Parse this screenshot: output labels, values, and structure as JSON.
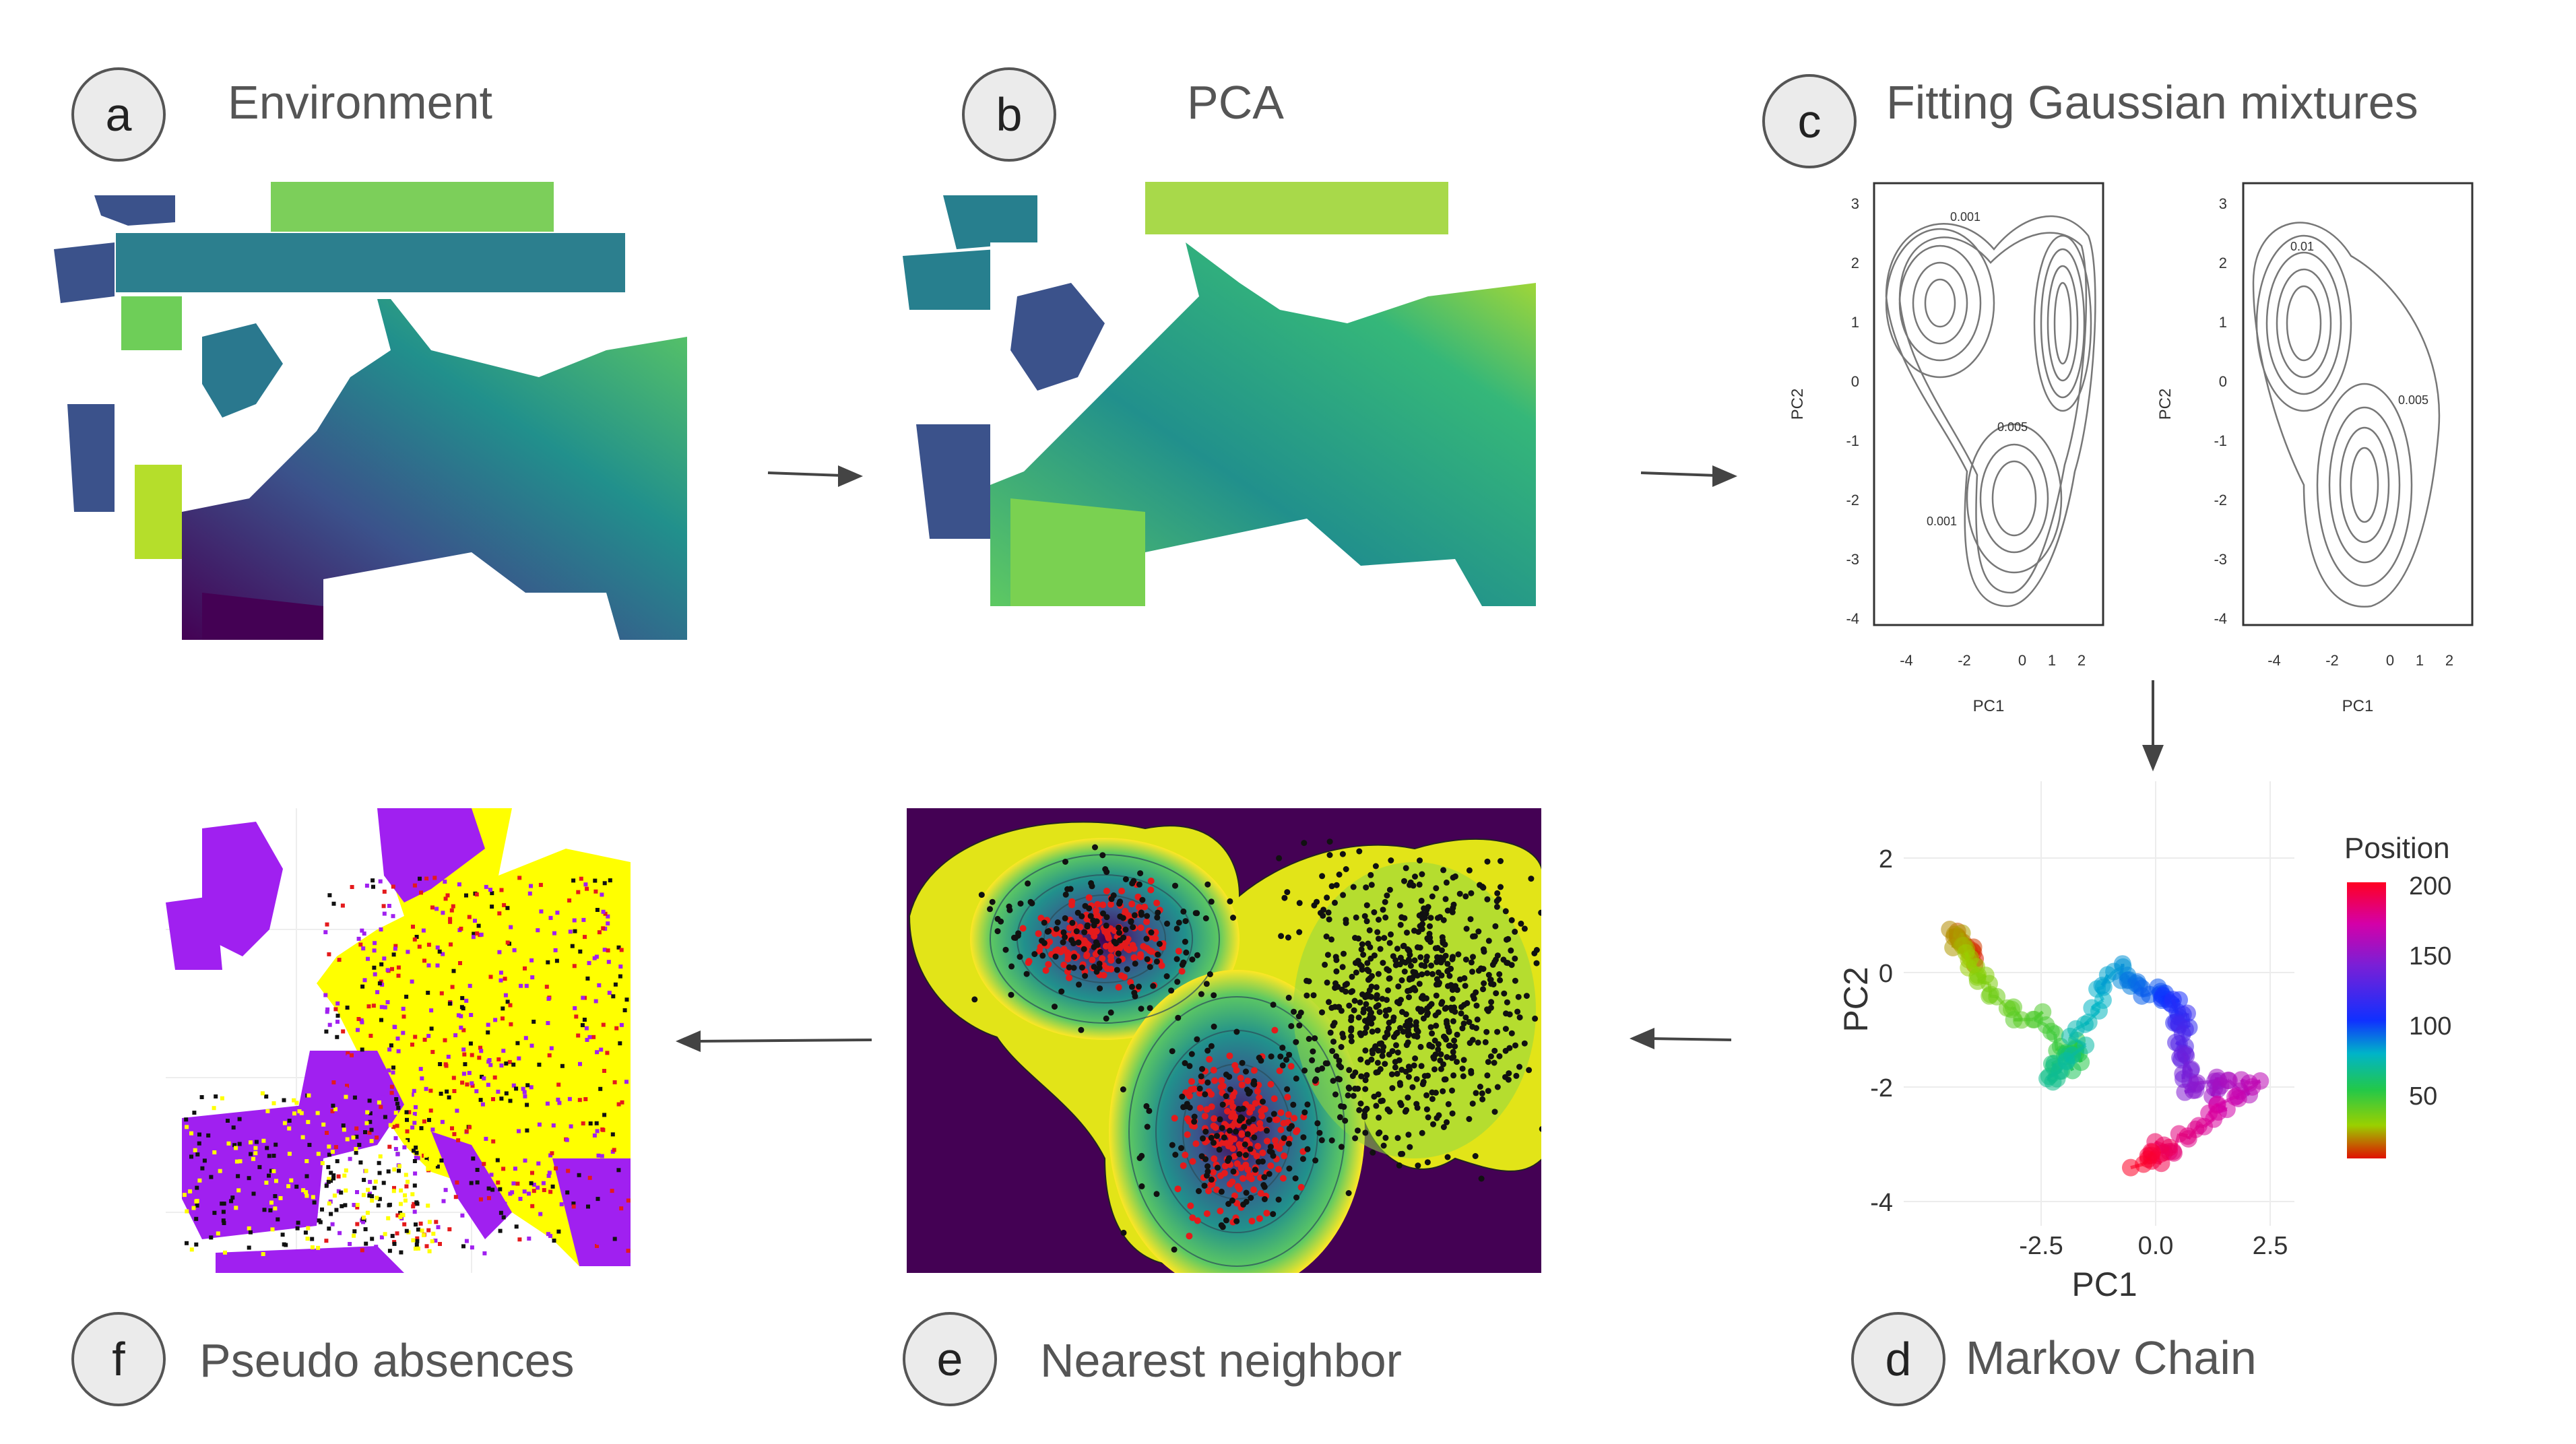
{
  "panels": {
    "a": {
      "letter": "a",
      "title": "Environment"
    },
    "b": {
      "letter": "b",
      "title": "PCA"
    },
    "c": {
      "letter": "c",
      "title": "Fitting Gaussian mixtures",
      "plot1": {
        "xlabel": "PC1",
        "ylabel": "PC2",
        "xticks": [
          "-4",
          "-2",
          "0",
          "1",
          "2"
        ],
        "yticks": [
          "3",
          "2",
          "1",
          "0",
          "-1",
          "-2",
          "-3",
          "-4"
        ],
        "contour_labels": [
          "0.001",
          "0.005",
          "0.001"
        ]
      },
      "plot2": {
        "xlabel": "PC1",
        "ylabel": "PC2",
        "xticks": [
          "-4",
          "-2",
          "0",
          "1",
          "2"
        ],
        "yticks": [
          "3",
          "2",
          "1",
          "0",
          "-1",
          "-2",
          "-3",
          "-4"
        ],
        "contour_labels": [
          "0.01",
          "0.005"
        ]
      }
    },
    "d": {
      "letter": "d",
      "title": "Markov Chain",
      "xlabel": "PC1",
      "ylabel": "PC2",
      "xticks": [
        "-2.5",
        "0.0",
        "2.5"
      ],
      "yticks": [
        "2",
        "0",
        "-2",
        "-4"
      ],
      "legend_title": "Position",
      "legend_ticks": [
        "200",
        "150",
        "100",
        "50"
      ]
    },
    "e": {
      "letter": "e",
      "title": "Nearest neighbor"
    },
    "f": {
      "letter": "f",
      "title": "Pseudo absences"
    }
  },
  "colors": {
    "viridis_dark": "#440154",
    "viridis_mid": "#21908c",
    "viridis_light": "#fde725",
    "presence": "#e41a1c",
    "absence": "#111111",
    "pseudo_purple": "#a020f0",
    "pseudo_yellow": "#ffff00"
  }
}
